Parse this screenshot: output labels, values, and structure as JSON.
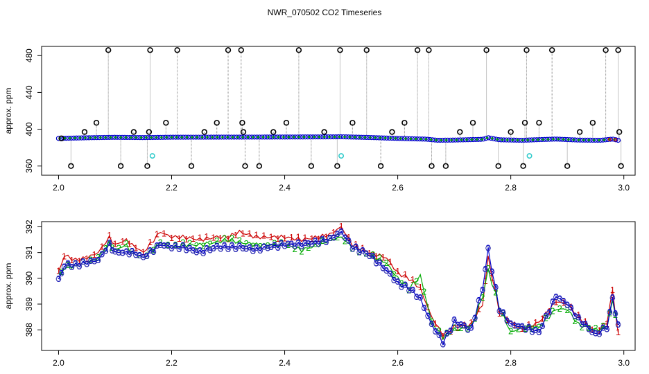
{
  "chart_data": [
    {
      "type": "scatter",
      "title": "NWR_070502  CO2 Timeseries",
      "xlabel": "",
      "ylabel": "approx. ppm",
      "xlim": [
        1.97,
        3.02
      ],
      "ylim": [
        350,
        490
      ],
      "xticks": [
        "2.0",
        "2.2",
        "2.4",
        "2.6",
        "2.8",
        "3.0"
      ],
      "yticks": [
        "360",
        "400",
        "440",
        "480"
      ],
      "colors": {
        "trace": "#888888",
        "open_circle": "#000000",
        "main_series": "#0000cc",
        "green_series": "#00aa00",
        "red_series": "#cc0000",
        "cyan_points": "#33cccc"
      },
      "baseline": [
        {
          "x": 2.0,
          "y": 390.0
        },
        {
          "x": 2.05,
          "y": 390.7
        },
        {
          "x": 2.1,
          "y": 391.2
        },
        {
          "x": 2.15,
          "y": 390.9
        },
        {
          "x": 2.2,
          "y": 391.3
        },
        {
          "x": 2.3,
          "y": 391.4
        },
        {
          "x": 2.4,
          "y": 391.5
        },
        {
          "x": 2.49,
          "y": 391.7
        },
        {
          "x": 2.5,
          "y": 391.8
        },
        {
          "x": 2.55,
          "y": 391.0
        },
        {
          "x": 2.6,
          "y": 390.0
        },
        {
          "x": 2.65,
          "y": 389.2
        },
        {
          "x": 2.67,
          "y": 388.0
        },
        {
          "x": 2.7,
          "y": 388.2
        },
        {
          "x": 2.75,
          "y": 389.0
        },
        {
          "x": 2.76,
          "y": 390.8
        },
        {
          "x": 2.78,
          "y": 388.5
        },
        {
          "x": 2.82,
          "y": 388.0
        },
        {
          "x": 2.88,
          "y": 389.3
        },
        {
          "x": 2.92,
          "y": 388.2
        },
        {
          "x": 2.96,
          "y": 388.0
        },
        {
          "x": 2.98,
          "y": 389.3
        },
        {
          "x": 2.99,
          "y": 388.0
        }
      ],
      "outliers": [
        {
          "x": 2.005,
          "y": 390
        },
        {
          "x": 2.022,
          "y": 360
        },
        {
          "x": 2.046,
          "y": 397
        },
        {
          "x": 2.067,
          "y": 407
        },
        {
          "x": 2.088,
          "y": 486
        },
        {
          "x": 2.11,
          "y": 360
        },
        {
          "x": 2.133,
          "y": 397
        },
        {
          "x": 2.157,
          "y": 360
        },
        {
          "x": 2.16,
          "y": 397
        },
        {
          "x": 2.162,
          "y": 486
        },
        {
          "x": 2.19,
          "y": 407
        },
        {
          "x": 2.21,
          "y": 486
        },
        {
          "x": 2.235,
          "y": 360
        },
        {
          "x": 2.258,
          "y": 397
        },
        {
          "x": 2.28,
          "y": 407
        },
        {
          "x": 2.3,
          "y": 486
        },
        {
          "x": 2.323,
          "y": 486
        },
        {
          "x": 2.325,
          "y": 407
        },
        {
          "x": 2.327,
          "y": 397
        },
        {
          "x": 2.33,
          "y": 360
        },
        {
          "x": 2.355,
          "y": 360
        },
        {
          "x": 2.38,
          "y": 397
        },
        {
          "x": 2.403,
          "y": 407
        },
        {
          "x": 2.425,
          "y": 486
        },
        {
          "x": 2.447,
          "y": 360
        },
        {
          "x": 2.47,
          "y": 397
        },
        {
          "x": 2.493,
          "y": 360
        },
        {
          "x": 2.498,
          "y": 486
        },
        {
          "x": 2.52,
          "y": 407
        },
        {
          "x": 2.545,
          "y": 486
        },
        {
          "x": 2.57,
          "y": 360
        },
        {
          "x": 2.59,
          "y": 397
        },
        {
          "x": 2.612,
          "y": 407
        },
        {
          "x": 2.635,
          "y": 486
        },
        {
          "x": 2.655,
          "y": 486
        },
        {
          "x": 2.66,
          "y": 360
        },
        {
          "x": 2.685,
          "y": 360
        },
        {
          "x": 2.71,
          "y": 397
        },
        {
          "x": 2.733,
          "y": 407
        },
        {
          "x": 2.757,
          "y": 486
        },
        {
          "x": 2.778,
          "y": 360
        },
        {
          "x": 2.8,
          "y": 397
        },
        {
          "x": 2.822,
          "y": 360
        },
        {
          "x": 2.825,
          "y": 407
        },
        {
          "x": 2.828,
          "y": 486
        },
        {
          "x": 2.85,
          "y": 407
        },
        {
          "x": 2.873,
          "y": 486
        },
        {
          "x": 2.9,
          "y": 360
        },
        {
          "x": 2.922,
          "y": 397
        },
        {
          "x": 2.945,
          "y": 407
        },
        {
          "x": 2.968,
          "y": 486
        },
        {
          "x": 2.99,
          "y": 486
        },
        {
          "x": 2.992,
          "y": 397
        },
        {
          "x": 2.995,
          "y": 360
        }
      ],
      "cyan_points": [
        {
          "x": 2.166,
          "y": 371
        },
        {
          "x": 2.5,
          "y": 371
        },
        {
          "x": 2.833,
          "y": 371
        }
      ]
    },
    {
      "type": "line",
      "title": "",
      "xlabel": "",
      "ylabel": "approx. ppm",
      "xlim": [
        1.97,
        3.02
      ],
      "ylim": [
        387.2,
        392.2
      ],
      "xticks": [
        "2.0",
        "2.2",
        "2.4",
        "2.6",
        "2.8",
        "3.0"
      ],
      "yticks": [
        "388",
        "389",
        "390",
        "391",
        "392"
      ],
      "marker_labels": [
        "1",
        "2",
        "3"
      ],
      "series": [
        {
          "marker": "1",
          "color": "#cc0000",
          "points": [
            [
              2.0,
              390.2
            ],
            [
              2.01,
              390.9
            ],
            [
              2.03,
              390.7
            ],
            [
              2.05,
              390.8
            ],
            [
              2.07,
              391.0
            ],
            [
              2.09,
              391.6
            ],
            [
              2.1,
              391.3
            ],
            [
              2.12,
              391.5
            ],
            [
              2.13,
              391.3
            ],
            [
              2.15,
              391.0
            ],
            [
              2.18,
              391.8
            ],
            [
              2.2,
              391.6
            ],
            [
              2.22,
              391.6
            ],
            [
              2.25,
              391.5
            ],
            [
              2.28,
              391.6
            ],
            [
              2.3,
              391.6
            ],
            [
              2.32,
              391.8
            ],
            [
              2.35,
              391.6
            ],
            [
              2.37,
              391.6
            ],
            [
              2.4,
              391.6
            ],
            [
              2.43,
              391.5
            ],
            [
              2.46,
              391.6
            ],
            [
              2.48,
              391.7
            ],
            [
              2.5,
              392.0
            ],
            [
              2.52,
              391.3
            ],
            [
              2.55,
              391.0
            ],
            [
              2.58,
              390.8
            ],
            [
              2.6,
              390.2
            ],
            [
              2.62,
              390.0
            ],
            [
              2.64,
              389.6
            ],
            [
              2.66,
              388.5
            ],
            [
              2.68,
              387.8
            ],
            [
              2.7,
              388.1
            ],
            [
              2.73,
              388.2
            ],
            [
              2.75,
              389.0
            ],
            [
              2.76,
              390.8
            ],
            [
              2.78,
              388.7
            ],
            [
              2.8,
              388.3
            ],
            [
              2.82,
              388.0
            ],
            [
              2.85,
              388.3
            ],
            [
              2.88,
              389.1
            ],
            [
              2.9,
              389.0
            ],
            [
              2.92,
              388.5
            ],
            [
              2.95,
              387.9
            ],
            [
              2.97,
              388.3
            ],
            [
              2.98,
              389.5
            ],
            [
              2.99,
              387.9
            ]
          ]
        },
        {
          "marker": "2",
          "color": "#00aa00",
          "points": [
            [
              2.0,
              390.1
            ],
            [
              2.01,
              390.4
            ],
            [
              2.03,
              390.5
            ],
            [
              2.05,
              390.6
            ],
            [
              2.07,
              390.8
            ],
            [
              2.09,
              391.4
            ],
            [
              2.1,
              391.1
            ],
            [
              2.12,
              391.3
            ],
            [
              2.13,
              391.0
            ],
            [
              2.15,
              390.8
            ],
            [
              2.18,
              391.4
            ],
            [
              2.2,
              391.2
            ],
            [
              2.22,
              391.3
            ],
            [
              2.25,
              391.3
            ],
            [
              2.28,
              391.4
            ],
            [
              2.3,
              391.5
            ],
            [
              2.32,
              391.4
            ],
            [
              2.35,
              391.3
            ],
            [
              2.37,
              391.3
            ],
            [
              2.4,
              391.3
            ],
            [
              2.43,
              391.1
            ],
            [
              2.46,
              391.3
            ],
            [
              2.48,
              391.5
            ],
            [
              2.5,
              391.6
            ],
            [
              2.52,
              391.2
            ],
            [
              2.55,
              390.9
            ],
            [
              2.58,
              390.6
            ],
            [
              2.6,
              390.0
            ],
            [
              2.62,
              389.6
            ],
            [
              2.64,
              390.1
            ],
            [
              2.66,
              388.3
            ],
            [
              2.68,
              387.7
            ],
            [
              2.7,
              388.0
            ],
            [
              2.73,
              388.1
            ],
            [
              2.75,
              389.3
            ],
            [
              2.76,
              390.3
            ],
            [
              2.78,
              388.9
            ],
            [
              2.8,
              387.9
            ],
            [
              2.82,
              388.1
            ],
            [
              2.85,
              388.1
            ],
            [
              2.88,
              388.8
            ],
            [
              2.9,
              388.8
            ],
            [
              2.92,
              388.2
            ],
            [
              2.95,
              388.0
            ],
            [
              2.97,
              388.1
            ],
            [
              2.98,
              389.1
            ],
            [
              2.99,
              388.2
            ]
          ]
        },
        {
          "marker": "3",
          "color": "#0000cc",
          "points": [
            [
              2.0,
              389.9
            ],
            [
              2.01,
              390.5
            ],
            [
              2.03,
              390.5
            ],
            [
              2.05,
              390.6
            ],
            [
              2.07,
              390.7
            ],
            [
              2.09,
              391.3
            ],
            [
              2.1,
              391.0
            ],
            [
              2.12,
              391.0
            ],
            [
              2.13,
              391.0
            ],
            [
              2.15,
              390.8
            ],
            [
              2.18,
              391.3
            ],
            [
              2.2,
              391.2
            ],
            [
              2.22,
              391.2
            ],
            [
              2.25,
              391.0
            ],
            [
              2.28,
              391.2
            ],
            [
              2.3,
              391.2
            ],
            [
              2.32,
              391.2
            ],
            [
              2.35,
              391.1
            ],
            [
              2.37,
              391.2
            ],
            [
              2.4,
              391.3
            ],
            [
              2.43,
              391.3
            ],
            [
              2.46,
              391.4
            ],
            [
              2.48,
              391.5
            ],
            [
              2.5,
              391.8
            ],
            [
              2.52,
              391.2
            ],
            [
              2.55,
              390.9
            ],
            [
              2.58,
              390.3
            ],
            [
              2.6,
              389.8
            ],
            [
              2.62,
              389.6
            ],
            [
              2.64,
              389.2
            ],
            [
              2.66,
              388.2
            ],
            [
              2.68,
              387.5
            ],
            [
              2.7,
              388.3
            ],
            [
              2.73,
              388.0
            ],
            [
              2.75,
              389.6
            ],
            [
              2.76,
              391.1
            ],
            [
              2.78,
              388.8
            ],
            [
              2.8,
              388.2
            ],
            [
              2.82,
              388.1
            ],
            [
              2.85,
              387.9
            ],
            [
              2.88,
              389.3
            ],
            [
              2.9,
              389.0
            ],
            [
              2.92,
              388.4
            ],
            [
              2.95,
              387.8
            ],
            [
              2.97,
              388.1
            ],
            [
              2.98,
              389.2
            ],
            [
              2.99,
              388.2
            ]
          ]
        }
      ]
    }
  ]
}
